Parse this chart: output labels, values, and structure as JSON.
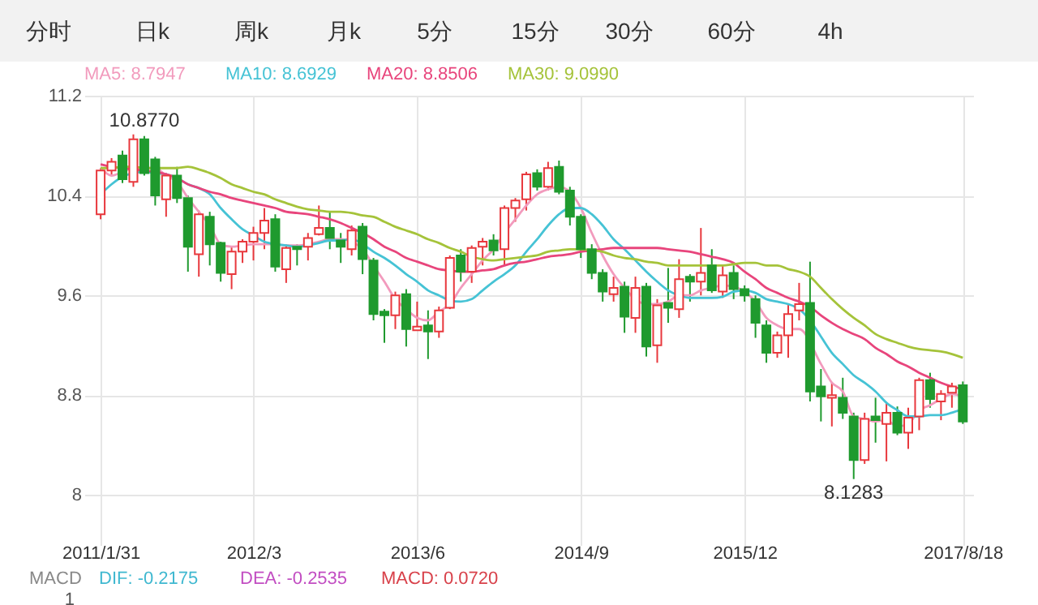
{
  "chart_data": {
    "type": "candlestick",
    "categories": [
      "2011/1/31",
      null,
      null,
      null,
      null,
      null,
      null,
      null,
      null,
      null,
      null,
      null,
      null,
      null,
      "2012/3",
      null,
      null,
      null,
      null,
      null,
      null,
      null,
      null,
      null,
      null,
      null,
      null,
      null,
      null,
      "2013/6",
      null,
      null,
      null,
      null,
      null,
      null,
      null,
      null,
      null,
      null,
      null,
      null,
      null,
      null,
      "2014/9",
      null,
      null,
      null,
      null,
      null,
      null,
      null,
      null,
      null,
      null,
      null,
      null,
      null,
      null,
      "2015/12",
      null,
      null,
      null,
      null,
      null,
      null,
      null,
      null,
      null,
      null,
      null,
      null,
      null,
      null,
      null,
      null,
      null,
      null,
      null,
      "2017/8/18"
    ],
    "ohlc": [
      [
        10.25,
        10.62,
        10.21,
        10.6
      ],
      [
        10.6,
        10.7,
        10.56,
        10.67
      ],
      [
        10.72,
        10.76,
        10.5,
        10.53
      ],
      [
        10.51,
        10.89,
        10.47,
        10.85
      ],
      [
        10.85,
        10.877,
        10.56,
        10.58
      ],
      [
        10.69,
        10.71,
        10.32,
        10.4
      ],
      [
        10.37,
        10.58,
        10.23,
        10.56
      ],
      [
        10.56,
        10.63,
        10.34,
        10.38
      ],
      [
        10.38,
        10.4,
        9.79,
        9.99
      ],
      [
        9.93,
        10.28,
        9.75,
        10.25
      ],
      [
        10.23,
        10.27,
        9.84,
        10.01
      ],
      [
        10.02,
        10.03,
        9.71,
        9.78
      ],
      [
        9.77,
        9.99,
        9.65,
        9.95
      ],
      [
        9.95,
        10.05,
        9.86,
        10.03
      ],
      [
        10.03,
        10.15,
        9.88,
        10.1
      ],
      [
        10.1,
        10.3,
        9.97,
        10.2
      ],
      [
        10.21,
        10.25,
        9.79,
        9.83
      ],
      [
        9.81,
        10.01,
        9.7,
        9.98
      ],
      [
        9.99,
        10.01,
        9.84,
        9.97
      ],
      [
        9.99,
        10.1,
        9.88,
        10.06
      ],
      [
        10.09,
        10.32,
        10.08,
        10.14
      ],
      [
        10.14,
        10.27,
        9.97,
        10.06
      ],
      [
        10.04,
        10.1,
        9.86,
        9.99
      ],
      [
        9.97,
        10.16,
        9.92,
        10.12
      ],
      [
        10.15,
        10.18,
        9.77,
        9.89
      ],
      [
        9.88,
        9.9,
        9.4,
        9.45
      ],
      [
        9.47,
        9.49,
        9.22,
        9.44
      ],
      [
        9.44,
        9.63,
        9.33,
        9.6
      ],
      [
        9.61,
        9.65,
        9.19,
        9.33
      ],
      [
        9.32,
        9.55,
        9.32,
        9.35
      ],
      [
        9.36,
        9.48,
        9.09,
        9.31
      ],
      [
        9.31,
        9.51,
        9.26,
        9.48
      ],
      [
        9.5,
        9.92,
        9.49,
        9.9
      ],
      [
        9.92,
        9.97,
        9.71,
        9.79
      ],
      [
        9.79,
        10.0,
        9.7,
        9.98
      ],
      [
        9.99,
        10.06,
        9.84,
        10.03
      ],
      [
        10.04,
        10.09,
        9.92,
        9.96
      ],
      [
        9.97,
        10.32,
        9.84,
        10.3
      ],
      [
        10.3,
        10.38,
        10.19,
        10.36
      ],
      [
        10.37,
        10.59,
        10.28,
        10.57
      ],
      [
        10.58,
        10.61,
        10.44,
        10.47
      ],
      [
        10.47,
        10.67,
        10.44,
        10.62
      ],
      [
        10.63,
        10.68,
        10.41,
        10.43
      ],
      [
        10.44,
        10.47,
        10.16,
        10.23
      ],
      [
        10.23,
        10.25,
        9.9,
        9.97
      ],
      [
        9.97,
        10.01,
        9.73,
        9.78
      ],
      [
        9.78,
        9.81,
        9.55,
        9.63
      ],
      [
        9.61,
        9.75,
        9.55,
        9.66
      ],
      [
        9.67,
        9.71,
        9.3,
        9.43
      ],
      [
        9.42,
        9.75,
        9.3,
        9.66
      ],
      [
        9.67,
        9.7,
        9.11,
        9.19
      ],
      [
        9.2,
        9.57,
        9.06,
        9.52
      ],
      [
        9.54,
        9.82,
        9.38,
        9.5
      ],
      [
        9.49,
        9.89,
        9.42,
        9.73
      ],
      [
        9.75,
        9.77,
        9.55,
        9.71
      ],
      [
        9.71,
        10.14,
        9.6,
        9.78
      ],
      [
        9.84,
        9.97,
        9.62,
        9.64
      ],
      [
        9.63,
        9.84,
        9.58,
        9.76
      ],
      [
        9.78,
        9.84,
        9.57,
        9.65
      ],
      [
        9.65,
        9.68,
        9.55,
        9.6
      ],
      [
        9.57,
        9.6,
        9.26,
        9.38
      ],
      [
        9.36,
        9.4,
        9.06,
        9.14
      ],
      [
        9.14,
        9.31,
        9.1,
        9.28
      ],
      [
        9.28,
        9.53,
        9.1,
        9.45
      ],
      [
        9.48,
        9.7,
        9.4,
        9.53
      ],
      [
        9.54,
        9.87,
        8.75,
        8.83
      ],
      [
        8.87,
        9.01,
        8.59,
        8.79
      ],
      [
        8.78,
        8.9,
        8.55,
        8.8
      ],
      [
        8.78,
        8.94,
        8.61,
        8.66
      ],
      [
        8.63,
        8.66,
        8.1283,
        8.28
      ],
      [
        8.28,
        8.66,
        8.25,
        8.61
      ],
      [
        8.63,
        8.78,
        8.42,
        8.6
      ],
      [
        8.57,
        8.74,
        8.27,
        8.66
      ],
      [
        8.66,
        8.71,
        8.48,
        8.5
      ],
      [
        8.5,
        8.7,
        8.37,
        8.62
      ],
      [
        8.63,
        8.94,
        8.52,
        8.92
      ],
      [
        8.92,
        8.98,
        8.7,
        8.77
      ],
      [
        8.75,
        8.84,
        8.6,
        8.81
      ],
      [
        8.82,
        8.9,
        8.7,
        8.87
      ],
      [
        8.88,
        8.91,
        8.57,
        8.59
      ]
    ],
    "colors": [
      "#e8383d",
      "#e8383d",
      "#1f9a2e",
      "#e8383d",
      "#1f9a2e",
      "#1f9a2e",
      "#e8383d",
      "#1f9a2e",
      "#1f9a2e",
      "#e8383d",
      "#1f9a2e",
      "#1f9a2e",
      "#e8383d",
      "#e8383d",
      "#e8383d",
      "#e8383d",
      "#1f9a2e",
      "#e8383d",
      "#1f9a2e",
      "#e8383d",
      "#e8383d",
      "#1f9a2e",
      "#1f9a2e",
      "#e8383d",
      "#1f9a2e",
      "#1f9a2e",
      "#1f9a2e",
      "#e8383d",
      "#1f9a2e",
      "#e8383d",
      "#1f9a2e",
      "#e8383d",
      "#e8383d",
      "#1f9a2e",
      "#e8383d",
      "#e8383d",
      "#1f9a2e",
      "#e8383d",
      "#e8383d",
      "#e8383d",
      "#1f9a2e",
      "#e8383d",
      "#1f9a2e",
      "#1f9a2e",
      "#1f9a2e",
      "#1f9a2e",
      "#1f9a2e",
      "#e8383d",
      "#1f9a2e",
      "#e8383d",
      "#1f9a2e",
      "#e8383d",
      "#1f9a2e",
      "#e8383d",
      "#1f9a2e",
      "#e8383d",
      "#1f9a2e",
      "#e8383d",
      "#1f9a2e",
      "#1f9a2e",
      "#1f9a2e",
      "#1f9a2e",
      "#e8383d",
      "#e8383d",
      "#e8383d",
      "#1f9a2e",
      "#1f9a2e",
      "#e8383d",
      "#1f9a2e",
      "#1f9a2e",
      "#e8383d",
      "#1f9a2e",
      "#e8383d",
      "#1f9a2e",
      "#e8383d",
      "#e8383d",
      "#1f9a2e",
      "#e8383d",
      "#e8383d",
      "#1f9a2e"
    ],
    "series": [
      {
        "name": "MA5: 8.7947",
        "type": "line",
        "color": "#f29bbd",
        "values": [
          10.62,
          10.56,
          10.59,
          10.62,
          10.62,
          10.62,
          10.56,
          10.51,
          10.38,
          10.27,
          10.16,
          10.01,
          9.99,
          10.0,
          10.01,
          10.01,
          10.01,
          10.0,
          10.0,
          10.01,
          10.03,
          10.05,
          10.05,
          10.03,
          9.97,
          9.84,
          9.71,
          9.57,
          9.49,
          9.42,
          9.4,
          9.47,
          9.53,
          9.66,
          9.77,
          9.88,
          9.97,
          10.1,
          10.21,
          10.32,
          10.41,
          10.45,
          10.47,
          10.43,
          10.3,
          10.1,
          9.92,
          9.77,
          9.66,
          9.57,
          9.53,
          9.53,
          9.55,
          9.6,
          9.6,
          9.64,
          9.66,
          9.68,
          9.67,
          9.63,
          9.55,
          9.42,
          9.36,
          9.33,
          9.33,
          null,
          9.05,
          8.9,
          8.83,
          8.63,
          8.61,
          8.59,
          8.6,
          8.55,
          8.57,
          8.68,
          8.72,
          8.77,
          8.81,
          8.79
        ]
      },
      {
        "name": "MA10: 8.6929",
        "type": "line",
        "color": "#46c3d5",
        "values": [
          10.41,
          10.49,
          10.55,
          10.58,
          10.59,
          10.58,
          10.57,
          10.54,
          10.49,
          10.46,
          10.41,
          10.3,
          10.21,
          10.13,
          10.08,
          10.03,
          10.01,
          10.0,
          9.99,
          10.0,
          10.02,
          10.04,
          10.04,
          10.05,
          10.01,
          9.95,
          9.9,
          9.84,
          9.77,
          9.71,
          9.64,
          9.6,
          9.56,
          9.55,
          9.57,
          9.64,
          9.71,
          9.77,
          9.84,
          9.95,
          10.05,
          10.16,
          10.25,
          10.3,
          10.3,
          10.25,
          10.16,
          10.05,
          9.97,
          9.88,
          9.79,
          9.71,
          9.64,
          9.6,
          9.58,
          9.58,
          9.58,
          9.59,
          9.63,
          9.64,
          9.62,
          9.57,
          9.55,
          9.53,
          9.49,
          9.4,
          9.27,
          9.14,
          9.05,
          8.96,
          8.9,
          8.83,
          8.74,
          8.68,
          8.63,
          8.63,
          8.64,
          8.64,
          8.66,
          8.69
        ]
      },
      {
        "name": "MA20: 8.8506",
        "type": "line",
        "color": "#e8457c",
        "values": [
          10.65,
          10.63,
          10.62,
          10.61,
          10.6,
          10.59,
          10.57,
          10.54,
          10.49,
          10.46,
          10.43,
          10.41,
          10.38,
          10.36,
          10.34,
          10.32,
          10.3,
          10.27,
          10.26,
          10.25,
          10.23,
          10.21,
          10.18,
          10.14,
          10.1,
          10.05,
          9.99,
          9.95,
          9.9,
          9.87,
          9.84,
          9.81,
          9.8,
          9.79,
          9.79,
          9.8,
          9.81,
          9.84,
          9.86,
          9.87,
          9.89,
          9.91,
          9.92,
          9.93,
          9.95,
          9.96,
          9.97,
          9.98,
          9.98,
          9.98,
          9.98,
          9.98,
          9.97,
          9.96,
          9.95,
          9.93,
          9.91,
          9.89,
          9.86,
          9.79,
          9.73,
          9.66,
          9.62,
          9.58,
          9.55,
          9.51,
          9.44,
          9.38,
          9.33,
          9.29,
          9.25,
          9.18,
          9.13,
          9.07,
          9.03,
          8.98,
          8.94,
          8.9,
          8.87,
          8.85
        ]
      },
      {
        "name": "MA30: 9.0990",
        "type": "line",
        "color": "#a5c33a",
        "values": [
          10.62,
          10.62,
          10.63,
          10.63,
          10.62,
          10.62,
          10.62,
          10.62,
          10.63,
          10.61,
          10.58,
          10.54,
          10.49,
          10.46,
          10.43,
          10.41,
          10.37,
          10.34,
          10.31,
          10.29,
          10.28,
          10.27,
          10.27,
          10.26,
          10.24,
          10.23,
          10.19,
          10.15,
          10.12,
          10.09,
          10.05,
          10.02,
          9.98,
          9.95,
          9.91,
          9.89,
          9.88,
          9.89,
          9.9,
          9.91,
          9.92,
          9.95,
          9.96,
          9.97,
          9.97,
          9.96,
          9.95,
          9.92,
          9.9,
          9.89,
          9.87,
          9.86,
          9.84,
          9.84,
          9.84,
          9.84,
          9.84,
          9.84,
          9.85,
          9.86,
          9.86,
          9.84,
          9.84,
          9.81,
          9.79,
          9.75,
          9.66,
          9.57,
          9.49,
          9.42,
          9.36,
          9.29,
          9.25,
          9.22,
          9.19,
          9.17,
          9.16,
          9.15,
          9.13,
          9.1
        ]
      }
    ],
    "ylim": [
      7.6,
      11.2
    ],
    "yticks": [
      8,
      8.8,
      9.6,
      10.4,
      11.2
    ],
    "grid": true,
    "legend": "top left",
    "annotations": [
      "分时",
      "日k",
      "周k",
      "月k",
      "5分",
      "15分",
      "30分",
      "60分",
      "4h",
      {
        "text": "10.8770",
        "y": 10.877
      },
      {
        "text": "8.1283",
        "y": 8.1283
      },
      "MACD",
      "DIF: -0.2175",
      "DEA: -0.2535",
      "MACD: 0.0720",
      "1"
    ]
  }
}
